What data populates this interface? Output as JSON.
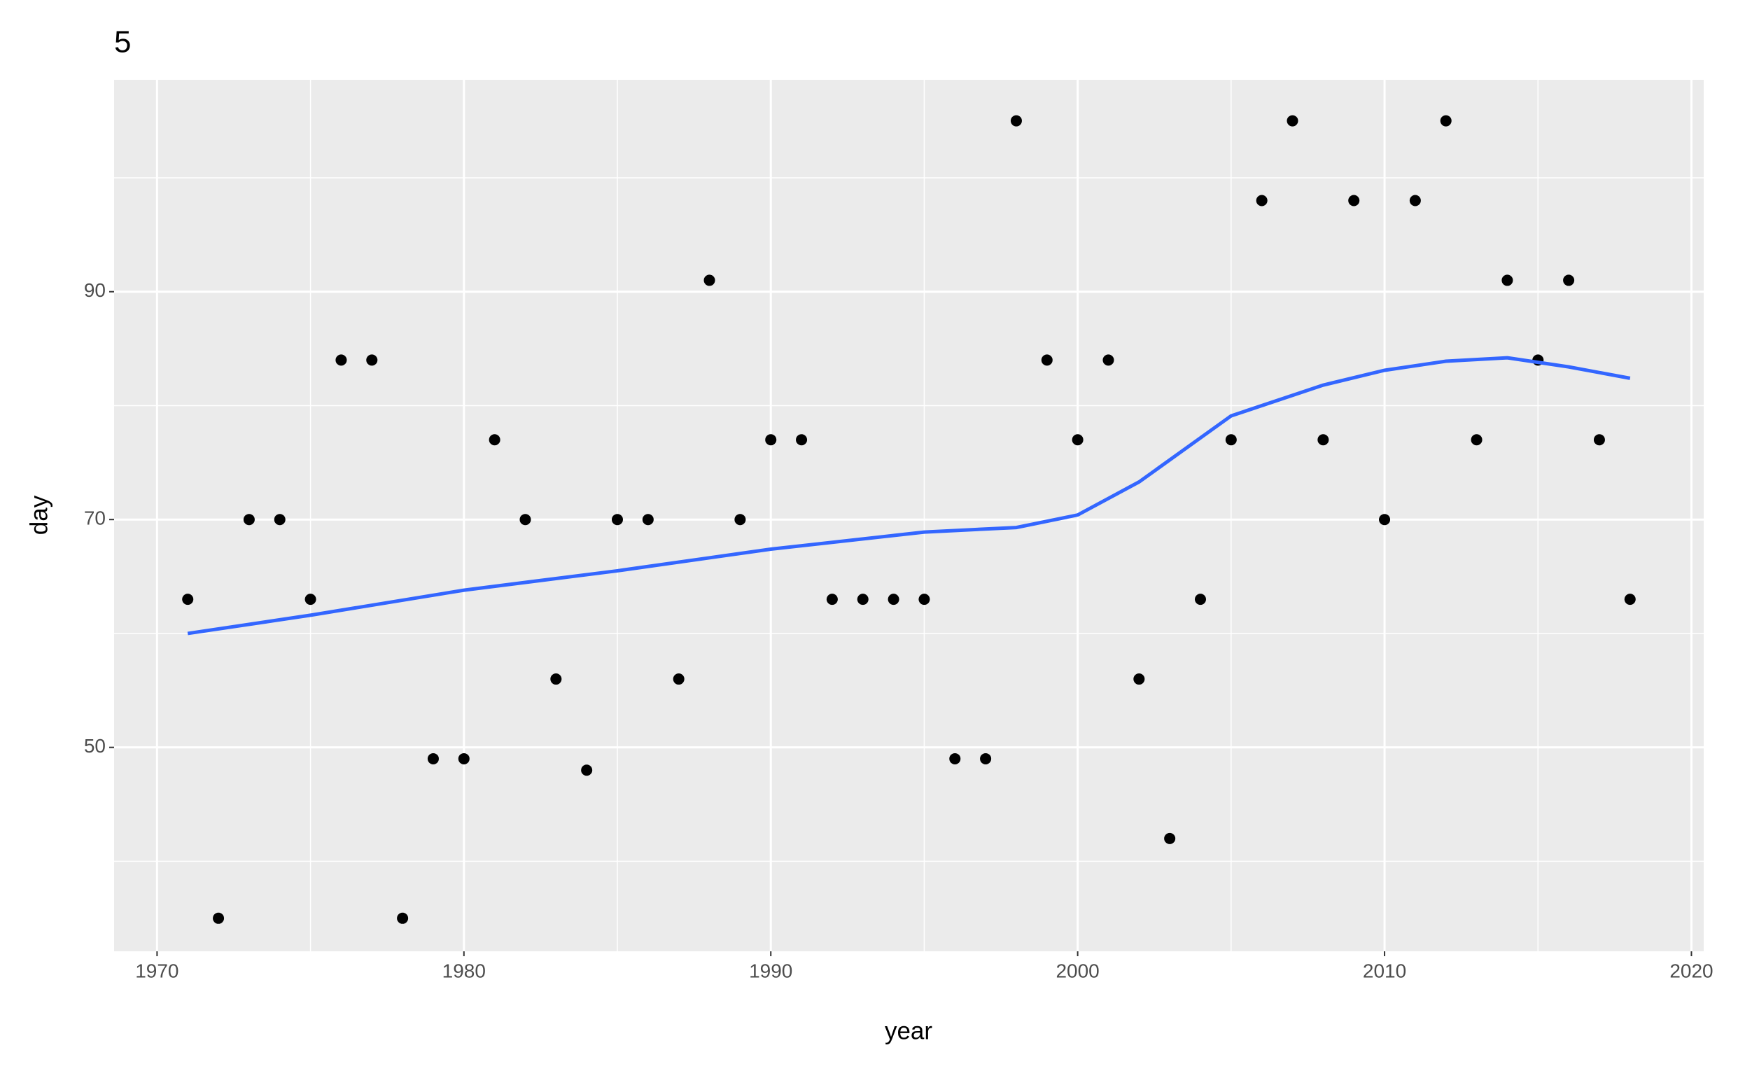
{
  "chart_data": {
    "type": "scatter",
    "title": "5",
    "x_label": "year",
    "y_label": "day",
    "x": [
      1971,
      1972,
      1973,
      1974,
      1975,
      1976,
      1977,
      1978,
      1979,
      1980,
      1981,
      1982,
      1983,
      1984,
      1985,
      1986,
      1987,
      1988,
      1989,
      1990,
      1991,
      1992,
      1993,
      1994,
      1995,
      1996,
      1997,
      1998,
      1999,
      2000,
      2001,
      2002,
      2003,
      2004,
      2005,
      2006,
      2007,
      2008,
      2009,
      2010,
      2011,
      2012,
      2013,
      2014,
      2015,
      2016,
      2017,
      2018
    ],
    "values": [
      63,
      35,
      70,
      70,
      63,
      84,
      84,
      35,
      49,
      49,
      77,
      70,
      56,
      48,
      70,
      70,
      56,
      91,
      70,
      77,
      77,
      63,
      63,
      63,
      63,
      49,
      49,
      105,
      84,
      77,
      84,
      56,
      42,
      63,
      77,
      98,
      105,
      77,
      98,
      70,
      98,
      105,
      77,
      91,
      84,
      91,
      77,
      63
    ],
    "color": "#000000",
    "smooth": {
      "x": [
        1971,
        1975,
        1980,
        1985,
        1990,
        1995,
        1998,
        2000,
        2002,
        2005,
        2008,
        2010,
        2012,
        2014,
        2016,
        2018
      ],
      "values": [
        60,
        61.6,
        63.8,
        65.5,
        67.4,
        68.9,
        69.3,
        70.4,
        73.3,
        79.1,
        81.8,
        83.1,
        83.9,
        84.2,
        83.4,
        82.4
      ],
      "color": "#3366ff"
    },
    "xlim": [
      1968.6,
      2020.4
    ],
    "ylim": [
      32.1,
      108.6
    ],
    "xticks": [
      1970,
      1980,
      1990,
      2000,
      2010,
      2020
    ],
    "yticks": [
      50,
      70,
      90
    ],
    "grid": true,
    "minor_grid": true
  }
}
